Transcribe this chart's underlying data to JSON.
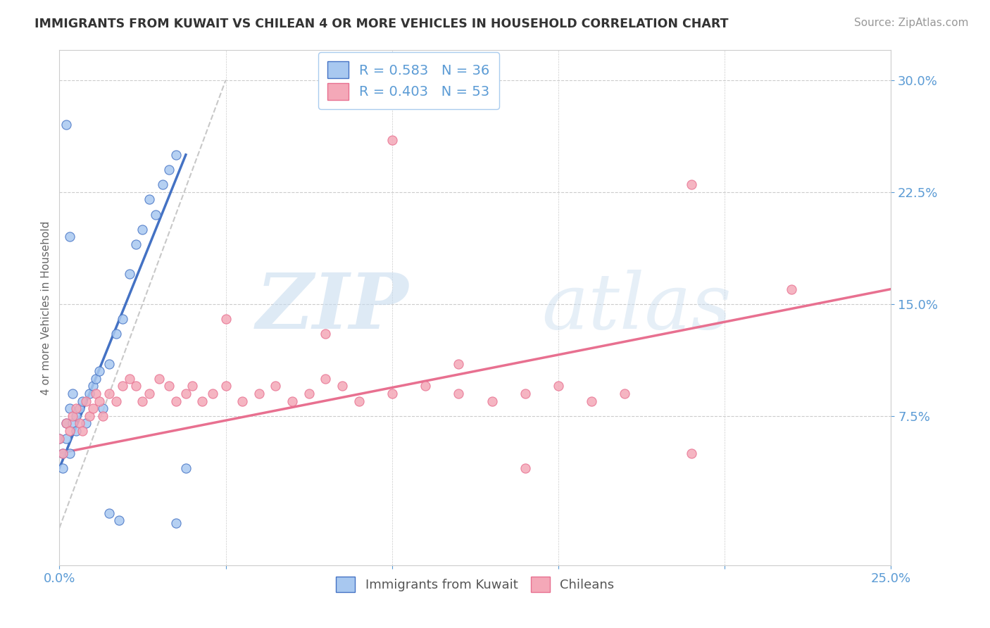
{
  "title": "IMMIGRANTS FROM KUWAIT VS CHILEAN 4 OR MORE VEHICLES IN HOUSEHOLD CORRELATION CHART",
  "source": "Source: ZipAtlas.com",
  "ylabel": "4 or more Vehicles in Household",
  "xlim": [
    0.0,
    0.25
  ],
  "ylim": [
    -0.025,
    0.32
  ],
  "yticks": [
    0.075,
    0.15,
    0.225,
    0.3
  ],
  "ytick_labels": [
    "7.5%",
    "15.0%",
    "22.5%",
    "30.0%"
  ],
  "xtick_labels": [
    "0.0%",
    "",
    "",
    "",
    "",
    "25.0%"
  ],
  "kuwait_R": 0.583,
  "kuwait_N": 36,
  "chilean_R": 0.403,
  "chilean_N": 53,
  "kuwait_color": "#A8C8F0",
  "chilean_color": "#F4A8B8",
  "kuwait_line_color": "#4472C4",
  "chilean_line_color": "#E87090",
  "axis_color": "#5B9BD5",
  "background_color": "#FFFFFF",
  "kuwait_x": [
    0.0,
    0.001,
    0.001,
    0.002,
    0.002,
    0.003,
    0.003,
    0.004,
    0.004,
    0.005,
    0.005,
    0.006,
    0.007,
    0.008,
    0.009,
    0.01,
    0.011,
    0.012,
    0.013,
    0.015,
    0.017,
    0.019,
    0.021,
    0.023,
    0.025,
    0.027,
    0.029,
    0.031,
    0.033,
    0.035,
    0.002,
    0.003,
    0.015,
    0.018,
    0.035,
    0.038
  ],
  "kuwait_y": [
    0.06,
    0.04,
    0.05,
    0.07,
    0.06,
    0.08,
    0.05,
    0.09,
    0.07,
    0.075,
    0.065,
    0.08,
    0.085,
    0.07,
    0.09,
    0.095,
    0.1,
    0.105,
    0.08,
    0.11,
    0.13,
    0.14,
    0.17,
    0.19,
    0.2,
    0.22,
    0.21,
    0.23,
    0.24,
    0.25,
    0.27,
    0.195,
    0.01,
    0.005,
    0.003,
    0.04
  ],
  "chilean_x": [
    0.0,
    0.001,
    0.002,
    0.003,
    0.004,
    0.005,
    0.006,
    0.007,
    0.008,
    0.009,
    0.01,
    0.011,
    0.012,
    0.013,
    0.015,
    0.017,
    0.019,
    0.021,
    0.023,
    0.025,
    0.027,
    0.03,
    0.033,
    0.035,
    0.038,
    0.04,
    0.043,
    0.046,
    0.05,
    0.055,
    0.06,
    0.065,
    0.07,
    0.075,
    0.08,
    0.085,
    0.09,
    0.1,
    0.11,
    0.12,
    0.13,
    0.14,
    0.15,
    0.16,
    0.17,
    0.19,
    0.05,
    0.08,
    0.12,
    0.14,
    0.19,
    0.22,
    0.1
  ],
  "chilean_y": [
    0.06,
    0.05,
    0.07,
    0.065,
    0.075,
    0.08,
    0.07,
    0.065,
    0.085,
    0.075,
    0.08,
    0.09,
    0.085,
    0.075,
    0.09,
    0.085,
    0.095,
    0.1,
    0.095,
    0.085,
    0.09,
    0.1,
    0.095,
    0.085,
    0.09,
    0.095,
    0.085,
    0.09,
    0.095,
    0.085,
    0.09,
    0.095,
    0.085,
    0.09,
    0.1,
    0.095,
    0.085,
    0.09,
    0.095,
    0.09,
    0.085,
    0.09,
    0.095,
    0.085,
    0.09,
    0.23,
    0.14,
    0.13,
    0.11,
    0.04,
    0.05,
    0.16,
    0.26
  ]
}
